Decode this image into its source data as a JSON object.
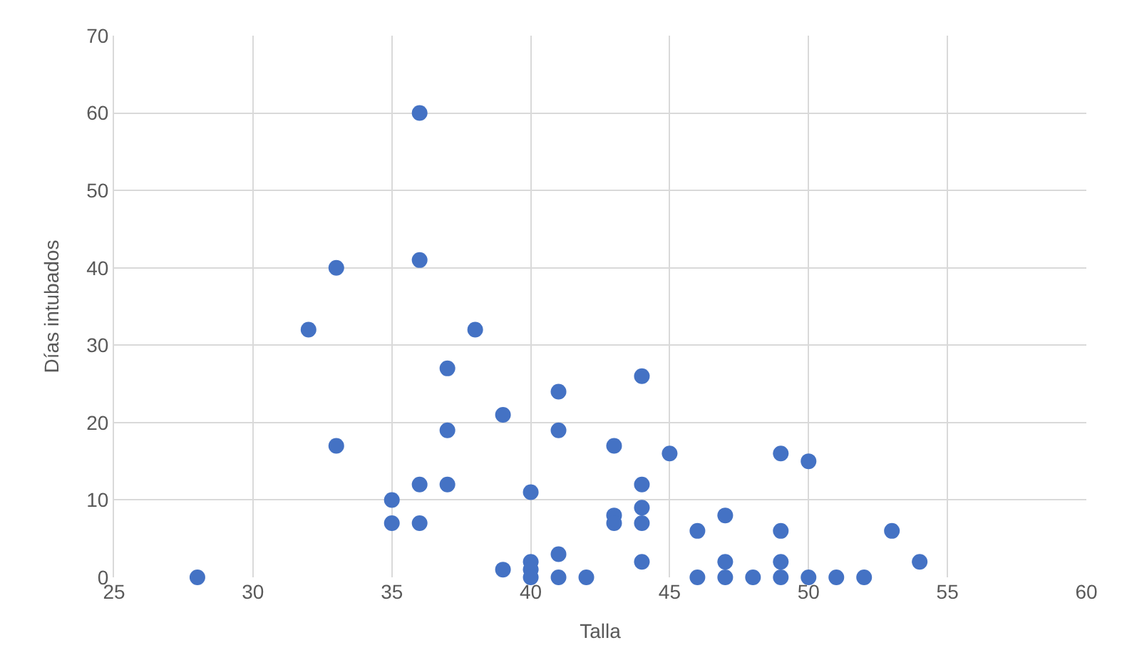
{
  "chart_data": {
    "type": "scatter",
    "xlabel": "Talla",
    "ylabel": "Días intubados",
    "x": [
      28,
      32,
      33,
      33,
      35,
      35,
      36,
      36,
      36,
      36,
      37,
      37,
      37,
      38,
      39,
      39,
      40,
      40,
      40,
      40,
      41,
      41,
      41,
      41,
      42,
      43,
      43,
      43,
      44,
      44,
      44,
      44,
      44,
      45,
      46,
      46,
      47,
      47,
      47,
      48,
      49,
      49,
      49,
      49,
      50,
      50,
      51,
      52,
      53,
      54
    ],
    "series": [
      {
        "color": "#4472c4",
        "values": [
          0,
          32,
          40,
          17,
          10,
          7,
          60,
          41,
          12,
          7,
          27,
          19,
          12,
          32,
          21,
          1,
          11,
          2,
          1,
          0,
          24,
          19,
          3,
          0,
          0,
          17,
          8,
          7,
          26,
          12,
          9,
          7,
          2,
          16,
          6,
          0,
          8,
          2,
          0,
          0,
          16,
          6,
          2,
          0,
          15,
          0,
          0,
          0,
          6,
          2
        ]
      }
    ],
    "xlim": [
      25,
      60
    ],
    "xticks": [
      25,
      30,
      35,
      40,
      45,
      50,
      55,
      60
    ],
    "ylim": [
      0,
      70
    ],
    "yticks": [
      0,
      10,
      20,
      30,
      40,
      50,
      60,
      70
    ],
    "grid": true,
    "marker": "circle",
    "legend": false
  }
}
